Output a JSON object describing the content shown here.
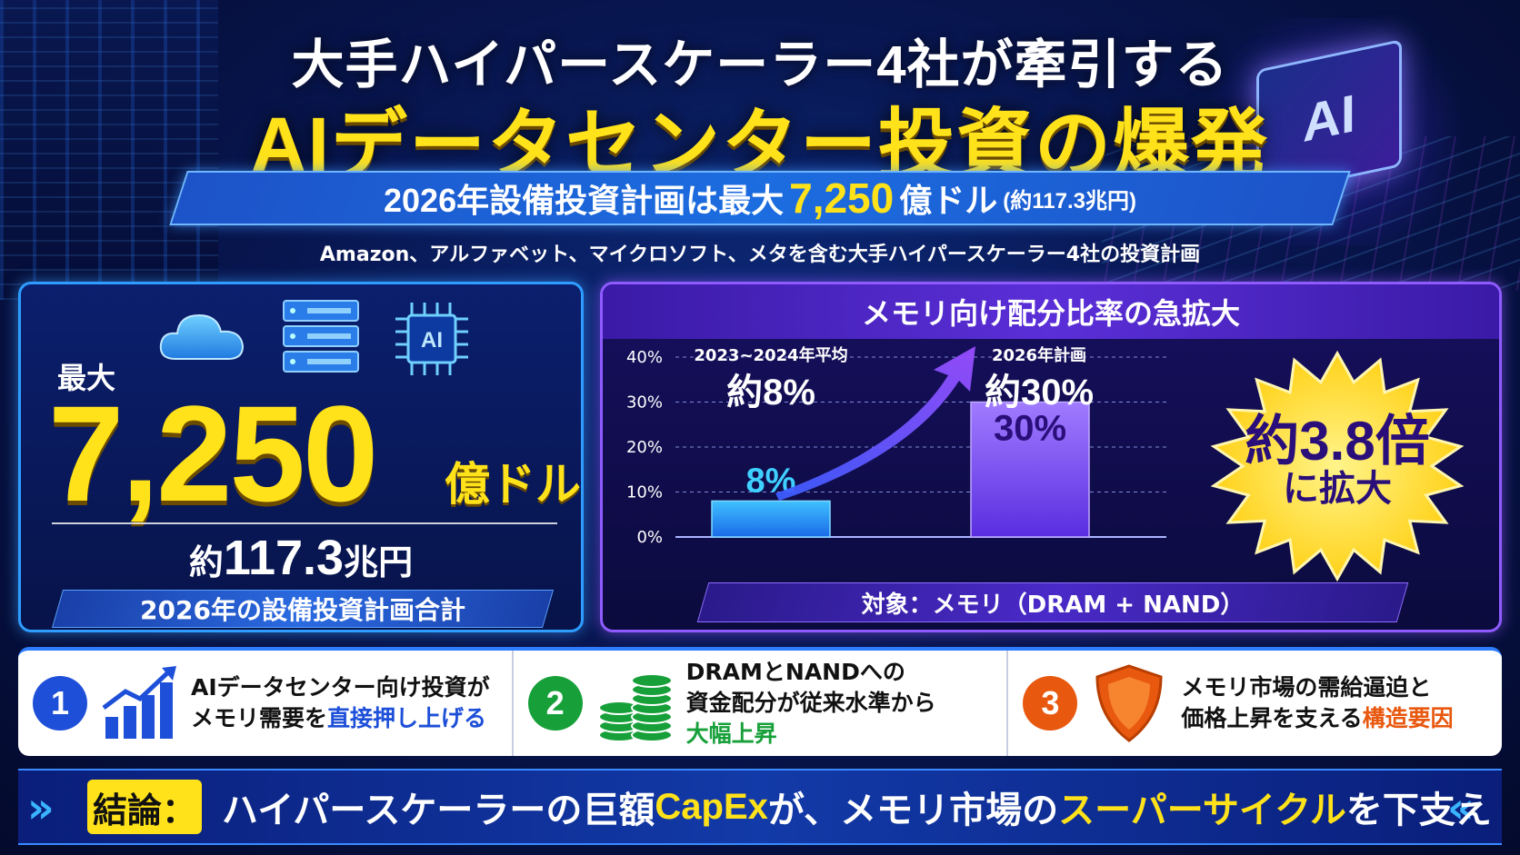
{
  "header": {
    "title_line1": "大手ハイパースケーラー4社が牽引する",
    "title_line2": "AIデータセンター投資の爆発",
    "subtitle_pre": "2026年設備投資計画は最大",
    "subtitle_value": "7,250",
    "subtitle_unit": "億ドル",
    "subtitle_yen": "(約117.3兆円)",
    "companies": "Amazon、アルファベット、マイクロソフト、メタを含む大手ハイパースケーラー4社の投資計画",
    "chip_text": "AI"
  },
  "left_panel": {
    "max_label": "最大",
    "value": "7,250",
    "unit": "億ドル",
    "yen_prefix": "約",
    "yen_value": "117.3",
    "yen_unit": "兆円",
    "caption": "2026年の設備投資計画合計",
    "icons": [
      "cloud-icon",
      "server-icon",
      "ai-chip-icon"
    ],
    "chip_label": "AI"
  },
  "right_panel": {
    "title": "メモリ向け配分比率の急拡大",
    "burst_line1": "約3.8倍",
    "burst_line2": "に拡大",
    "target": "対象：メモリ（DRAM + NAND）"
  },
  "chart_data": {
    "type": "bar",
    "categories": [
      "2023~2024年平均",
      "2026年計画"
    ],
    "values": [
      8,
      30
    ],
    "value_labels": [
      "8%",
      "30%"
    ],
    "top_labels": [
      "約8%",
      "約30%"
    ],
    "ylim": [
      0,
      40
    ],
    "yticks": [
      "0%",
      "10%",
      "20%",
      "30%",
      "40%"
    ],
    "colors": [
      "#2a9bff",
      "#7b4dff"
    ],
    "grid": true
  },
  "points": [
    {
      "num": "1",
      "icon": "growth-chart-icon",
      "color": "#1d4fd8",
      "line1": "AIデータセンター向け投資が",
      "line2_pre": "メモリ需要を",
      "line2_hl": "直接押し上げる",
      "line3": ""
    },
    {
      "num": "2",
      "icon": "coin-stack-icon",
      "color": "#17a03a",
      "line1": "DRAMとNANDへの",
      "line2_pre": "資金配分が従来水準から",
      "line2_hl": "",
      "line3": "大幅上昇"
    },
    {
      "num": "3",
      "icon": "shield-icon",
      "color": "#e8580f",
      "line1": "メモリ市場の需給逼迫と",
      "line2_pre": "価格上昇を支える",
      "line2_hl": "構造要因",
      "line3": ""
    }
  ],
  "conclusion": {
    "label": "結論：",
    "text_1": "ハイパースケーラーの巨額",
    "text_2": "CapEx",
    "text_3": "が、メモリ市場の",
    "text_4": "スーパーサイクル",
    "text_5": "を下支え"
  }
}
